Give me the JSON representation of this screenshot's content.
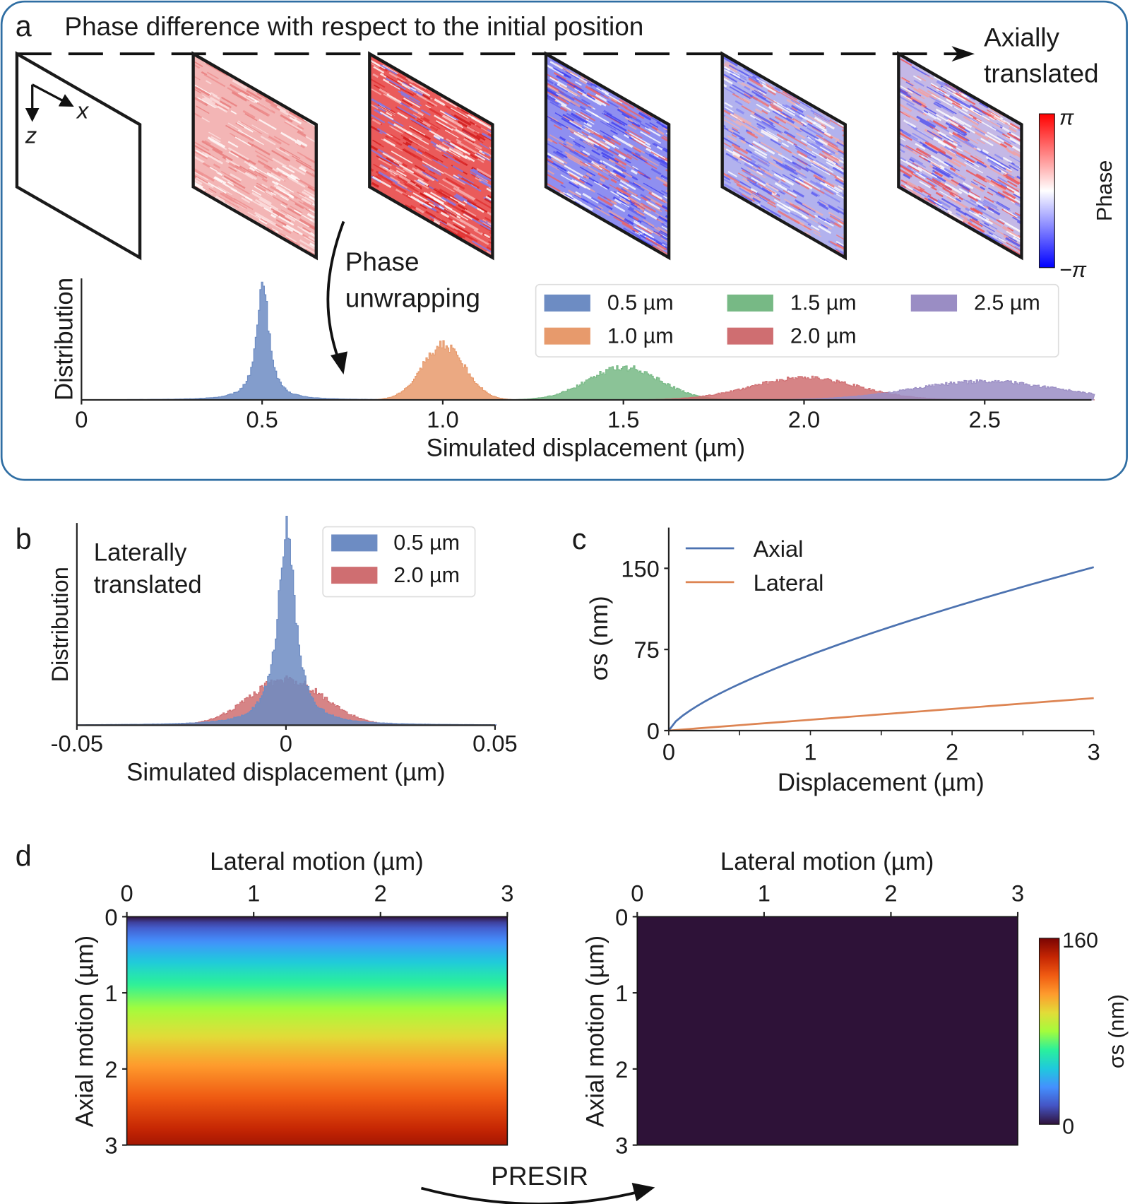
{
  "panel_a": {
    "label": "a",
    "title": "Phase difference with respect to the initial position",
    "arrow_label_line1": "Axially",
    "arrow_label_line2": "translated",
    "axis_x": "x",
    "axis_z": "z",
    "unwrap_line1": "Phase",
    "unwrap_line2": "unwrapping",
    "colorbar": {
      "label": "Phase",
      "max": "π",
      "min": "−π",
      "colors": [
        "#0000ff",
        "#ffffff",
        "#ff0000"
      ]
    }
  },
  "panel_d": {
    "label": "d",
    "arrow_label": "PRESIR",
    "colorbar": {
      "label": "σs (nm)",
      "max": "160",
      "min": "0",
      "colormap": "turbo"
    }
  },
  "chart_data": [
    {
      "id": "a",
      "type": "histogram",
      "xlabel": "Simulated displacement (µm)",
      "ylabel": "Distribution",
      "xlim": [
        0,
        2.8
      ],
      "xticks": [
        "0",
        "0.5",
        "1.0",
        "1.5",
        "2.0",
        "2.5"
      ],
      "xtick_values": [
        0,
        0.5,
        1.0,
        1.5,
        2.0,
        2.5
      ],
      "legend": "top-right",
      "series": [
        {
          "name": "0.5 µm",
          "center": 0.5,
          "relative_peak": 1.0,
          "spread": 0.02,
          "color": "#6d8cc3"
        },
        {
          "name": "1.0 µm",
          "center": 1.0,
          "relative_peak": 0.47,
          "spread": 0.06,
          "color": "#e79a6c"
        },
        {
          "name": "1.5 µm",
          "center": 1.5,
          "relative_peak": 0.28,
          "spread": 0.1,
          "color": "#77b985"
        },
        {
          "name": "2.0 µm",
          "center": 2.0,
          "relative_peak": 0.19,
          "spread": 0.15,
          "color": "#cf6e71"
        },
        {
          "name": "2.5 µm",
          "center": 2.5,
          "relative_peak": 0.16,
          "spread": 0.2,
          "color": "#9a8dc4"
        }
      ]
    },
    {
      "id": "b",
      "type": "histogram",
      "annotation_line1": "Laterally",
      "annotation_line2": "translated",
      "xlabel": "Simulated displacement (µm)",
      "ylabel": "Distribution",
      "xlim": [
        -0.05,
        0.05
      ],
      "xticks": [
        "-0.05",
        "0",
        "0.05"
      ],
      "xtick_values": [
        -0.05,
        0,
        0.05
      ],
      "legend": "top-right",
      "series": [
        {
          "name": "0.5 µm",
          "center": 0,
          "relative_peak": 1.0,
          "spread": 0.0025,
          "color": "#6d8cc3"
        },
        {
          "name": "2.0 µm",
          "center": 0,
          "relative_peak": 0.24,
          "spread": 0.009,
          "color": "#cf6e71"
        }
      ]
    },
    {
      "id": "c",
      "type": "line",
      "label": "c",
      "xlabel": "Displacement (µm)",
      "ylabel": "σs (nm)",
      "xlim": [
        0,
        3
      ],
      "ylim": [
        0,
        160
      ],
      "xticks": [
        "0",
        "1",
        "2",
        "3"
      ],
      "xtick_values": [
        0,
        1,
        2,
        3
      ],
      "yticks": [
        "0",
        "75",
        "150"
      ],
      "ytick_values": [
        0,
        75,
        150
      ],
      "legend": "top-left",
      "x": [
        0,
        0.25,
        0.5,
        0.75,
        1,
        1.5,
        2,
        2.5,
        3
      ],
      "series": [
        {
          "name": "Axial",
          "color": "#4c72b0",
          "values": [
            0,
            27,
            44,
            58,
            70,
            95,
            117,
            135,
            151
          ]
        },
        {
          "name": "Lateral",
          "color": "#dd8452",
          "values": [
            0,
            2.5,
            5,
            7.5,
            10,
            15,
            20,
            25,
            30
          ]
        }
      ]
    },
    {
      "id": "d-left",
      "type": "heatmap",
      "xlabel": "Lateral motion (µm)",
      "ylabel": "Axial motion (µm)",
      "xlim": [
        0,
        3
      ],
      "ylim": [
        0,
        3
      ],
      "xticks": [
        "0",
        "1",
        "2",
        "3"
      ],
      "yticks": [
        "0",
        "1",
        "2",
        "3"
      ],
      "colormap": "turbo",
      "clim": [
        0,
        160
      ],
      "description_values": {
        "axial": [
          0,
          1,
          2,
          3
        ],
        "sigma_nm": [
          0,
          70,
          117,
          151
        ]
      }
    },
    {
      "id": "d-right",
      "type": "heatmap",
      "xlabel": "Lateral motion (µm)",
      "ylabel": "Axial motion (µm)",
      "xlim": [
        0,
        3
      ],
      "ylim": [
        0,
        3
      ],
      "xticks": [
        "0",
        "1",
        "2",
        "3"
      ],
      "yticks": [
        "0",
        "1",
        "2",
        "3"
      ],
      "colormap": "turbo",
      "clim": [
        0,
        160
      ],
      "uniform_value": 0
    }
  ]
}
